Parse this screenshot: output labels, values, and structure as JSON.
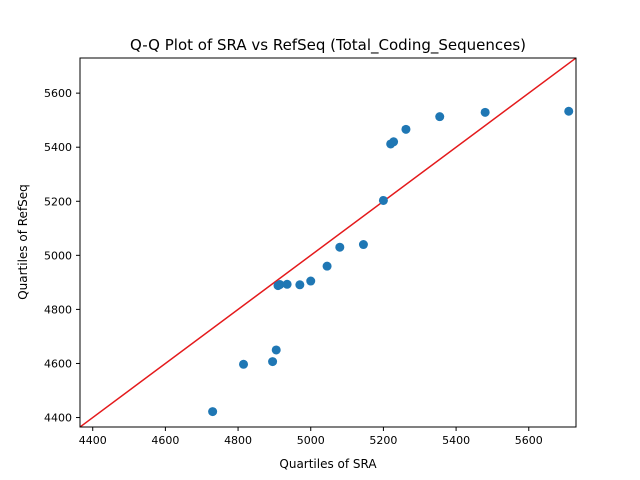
{
  "chart_data": {
    "type": "scatter",
    "title": "Q-Q Plot of SRA vs RefSeq (Total_Coding_Sequences)",
    "xlabel": "Quartiles of SRA",
    "ylabel": "Quartiles of RefSeq",
    "xlim": [
      4365,
      5730
    ],
    "ylim": [
      4365,
      5730
    ],
    "xticks": [
      4400,
      4600,
      4800,
      5000,
      5200,
      5400,
      5600
    ],
    "yticks": [
      4400,
      4600,
      4800,
      5000,
      5200,
      5400,
      5600
    ],
    "grid": false,
    "legend": "none",
    "reference_line": {
      "from": [
        4365,
        4365
      ],
      "to": [
        5730,
        5730
      ],
      "color": "#e41a1c"
    },
    "point_color": "#1f77b4",
    "x": [
      4730,
      4815,
      4895,
      4905,
      4910,
      4915,
      4935,
      4970,
      5000,
      5045,
      5080,
      5145,
      5200,
      5220,
      5228,
      5262,
      5355,
      5480,
      5710
    ],
    "y": [
      4422,
      4597,
      4607,
      4650,
      4888,
      4892,
      4893,
      4891,
      4905,
      4960,
      5030,
      5040,
      5203,
      5412,
      5420,
      5466,
      5513,
      5529,
      5533
    ]
  }
}
